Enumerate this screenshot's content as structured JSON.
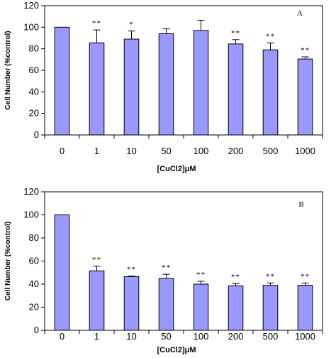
{
  "chart_data": [
    {
      "type": "bar",
      "panel_label": "A",
      "xlabel": "[CuCl2]μM",
      "ylabel": "Cell Number (%control)",
      "ylim": [
        0,
        120
      ],
      "yticks": [
        0,
        20,
        40,
        60,
        80,
        100,
        120
      ],
      "categories": [
        "0",
        "1",
        "10",
        "50",
        "100",
        "200",
        "500",
        "1000"
      ],
      "values": [
        100,
        85.5,
        89,
        94,
        97,
        84.5,
        79,
        70.5
      ],
      "errors": [
        0,
        12,
        7.5,
        4.5,
        9.5,
        4,
        6.5,
        2
      ],
      "significance": [
        "",
        "**",
        "*",
        "",
        "",
        "**",
        "**",
        "**"
      ],
      "bar_color": "#9999ff",
      "grid": false
    },
    {
      "type": "bar",
      "panel_label": "B",
      "xlabel": "[CuCl2]μM",
      "ylabel": "Cell Number (%control)",
      "ylim": [
        0,
        120
      ],
      "yticks": [
        0,
        20,
        40,
        60,
        80,
        100,
        120
      ],
      "categories": [
        "0",
        "1",
        "10",
        "50",
        "100",
        "200",
        "500",
        "1000"
      ],
      "values": [
        100,
        51.5,
        46.5,
        45,
        40,
        38.5,
        39,
        39
      ],
      "errors": [
        0,
        4,
        0.5,
        3.5,
        2.5,
        2,
        2,
        2
      ],
      "significance": [
        "",
        "**",
        "**",
        "**",
        "**",
        "**",
        "**",
        "**"
      ],
      "bar_color": "#9999ff",
      "grid": false
    }
  ]
}
